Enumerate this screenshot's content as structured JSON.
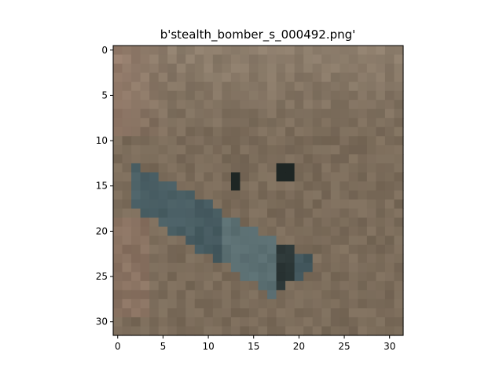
{
  "chart_data": {
    "type": "heatmap",
    "title": "b'stealth_bomber_s_000492.png'",
    "xlabel": "",
    "ylabel": "",
    "xlim": [
      -0.5,
      31.5
    ],
    "ylim": [
      31.5,
      -0.5
    ],
    "x_ticks": [
      "0",
      "5",
      "10",
      "15",
      "20",
      "25",
      "30"
    ],
    "y_ticks": [
      "0",
      "5",
      "10",
      "15",
      "20",
      "25",
      "30"
    ],
    "image_size": [
      32,
      32
    ],
    "image_description": "32x32 low-resolution photo of a dark blue-grey stealth bomber (V-shaped flying wing) over a brown-grey ground background",
    "palette": {
      "background": "#7a6a58",
      "background_light": "#9a8a78",
      "background_reddish": "#a88070",
      "wing_dark": "#2f4248",
      "wing_mid": "#4a6066",
      "wing_light": "#7a8f8f",
      "shadow": "#1e2624"
    },
    "grid": false,
    "legend": "none"
  }
}
